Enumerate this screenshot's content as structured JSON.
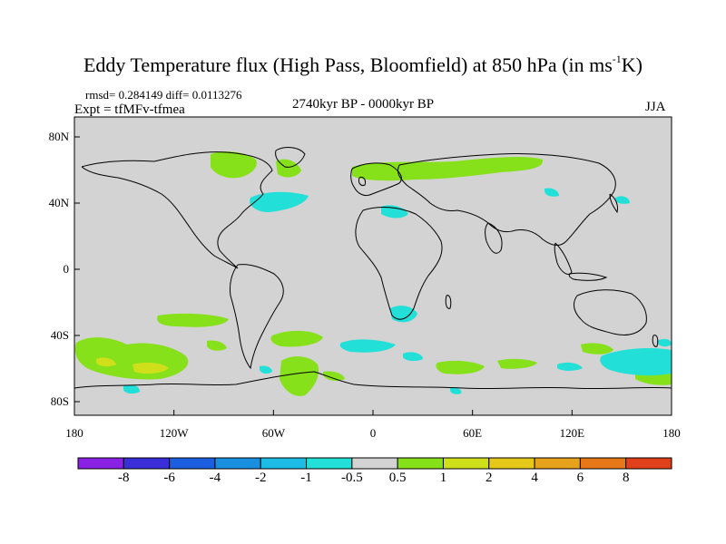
{
  "title": {
    "main": "Eddy Temperature flux (High Pass, Bloomfield) at 850 hPa (in ms",
    "sup": "-1",
    "end": "K)"
  },
  "stats": "rmsd= 0.284149 diff= 0.0113276",
  "experiment": "Expt = tfMFv-tfmea",
  "period": "2740kyr BP - 0000kyr BP",
  "season": "JJA",
  "y_axis_labels": [
    "80N",
    "40N",
    "0",
    "40S",
    "80S"
  ],
  "x_axis_labels": [
    "180",
    "120W",
    "60W",
    "0",
    "60E",
    "120E",
    "180"
  ],
  "colorbar": {
    "labels": [
      "-8",
      "-6",
      "-4",
      "-2",
      "-1",
      "-0.5",
      "0.5",
      "1",
      "2",
      "4",
      "6",
      "8"
    ],
    "colors": [
      "#8a22e6",
      "#3a2ed8",
      "#1c5ee0",
      "#1a8fe0",
      "#1cbce6",
      "#22e0d8",
      "#d3d3d3",
      "#86e01a",
      "#cfe01a",
      "#e6c81a",
      "#e6a21a",
      "#e6781a",
      "#e0401a"
    ]
  },
  "map_colors": {
    "land_ocean": "#d3d3d3",
    "coast": "#000000",
    "positive_light": "#86e01a",
    "positive_mid": "#cfe01a",
    "negative_light": "#22e0d8"
  }
}
